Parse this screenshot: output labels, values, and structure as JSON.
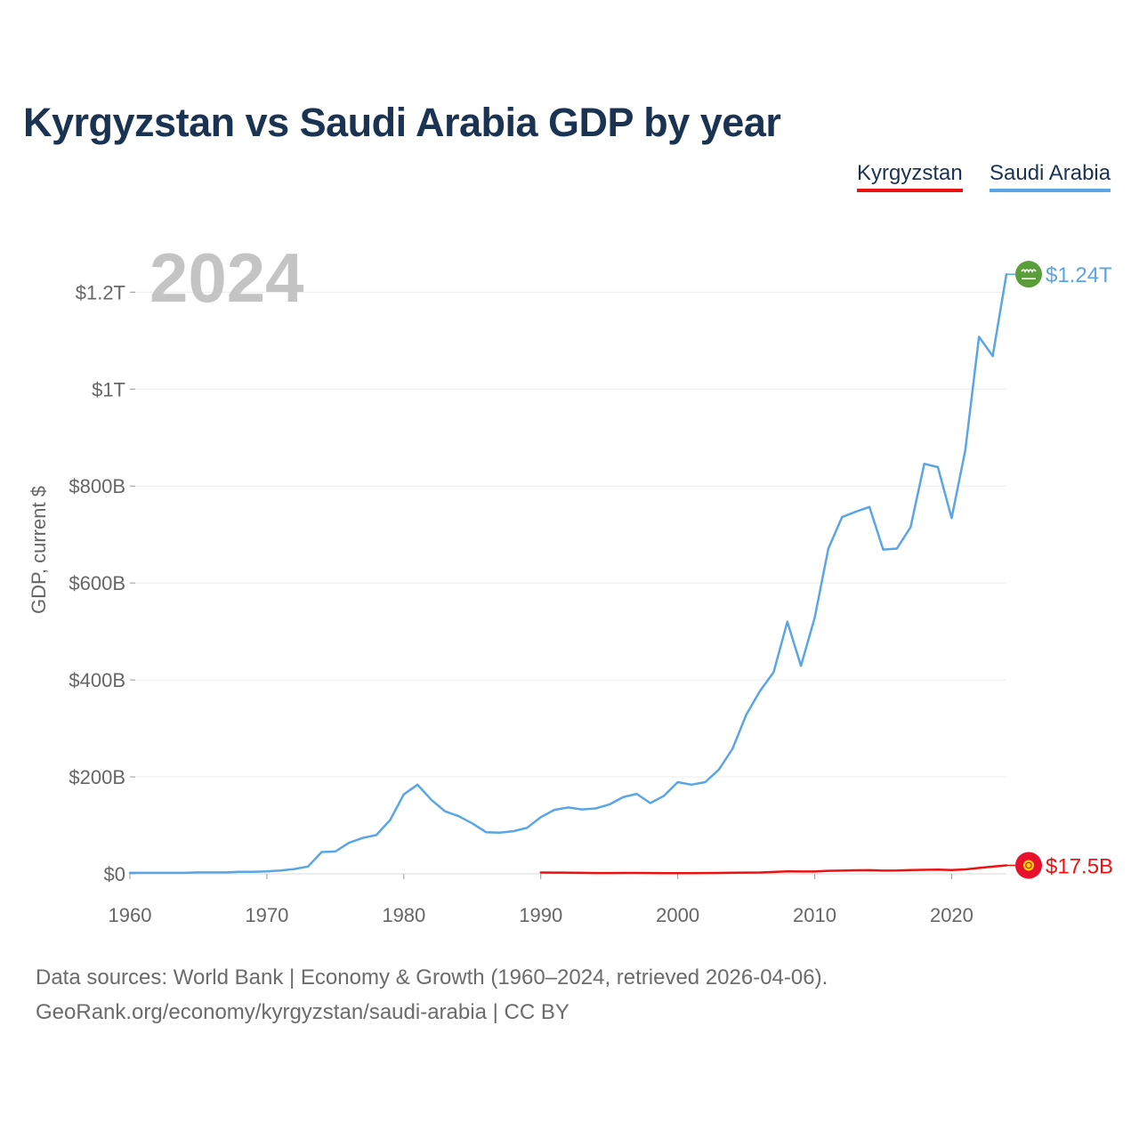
{
  "chart_data": {
    "type": "line",
    "title": "Kyrgyzstan vs Saudi Arabia GDP by year",
    "highlight_year": "2024",
    "ylabel": "GDP, current $",
    "xlabel": "",
    "xlim": [
      1960,
      2024
    ],
    "ylim": [
      0,
      1300
    ],
    "value_unit": "billions of current US$",
    "x_ticks": [
      {
        "value": 1960,
        "label": "1960"
      },
      {
        "value": 1970,
        "label": "1970"
      },
      {
        "value": 1980,
        "label": "1980"
      },
      {
        "value": 1990,
        "label": "1990"
      },
      {
        "value": 2000,
        "label": "2000"
      },
      {
        "value": 2010,
        "label": "2010"
      },
      {
        "value": 2020,
        "label": "2020"
      }
    ],
    "y_ticks": [
      {
        "value": 0,
        "label": "$0"
      },
      {
        "value": 200,
        "label": "$200B"
      },
      {
        "value": 400,
        "label": "$400B"
      },
      {
        "value": 600,
        "label": "$600B"
      },
      {
        "value": 800,
        "label": "$800B"
      },
      {
        "value": 1000,
        "label": "$1T"
      },
      {
        "value": 1200,
        "label": "$1.2T"
      }
    ],
    "grid": true,
    "legend_position": "top-right",
    "series": [
      {
        "key": "kyrgyzstan",
        "name": "Kyrgyzstan",
        "color": "#ee1111",
        "end_label": "$17.5B",
        "flag_icon": "kyrgyzstan-flag-icon",
        "x": [
          1990,
          1991,
          1992,
          1993,
          1994,
          1995,
          1996,
          1997,
          1998,
          1999,
          2000,
          2001,
          2002,
          2003,
          2004,
          2005,
          2006,
          2007,
          2008,
          2009,
          2010,
          2011,
          2012,
          2013,
          2014,
          2015,
          2016,
          2017,
          2018,
          2019,
          2020,
          2021,
          2022,
          2023,
          2024
        ],
        "values": [
          2.7,
          2.6,
          2.3,
          2.0,
          1.7,
          1.7,
          1.8,
          1.8,
          1.6,
          1.2,
          1.4,
          1.5,
          1.6,
          1.9,
          2.2,
          2.5,
          2.8,
          3.8,
          5.1,
          4.7,
          4.8,
          6.2,
          6.6,
          7.3,
          7.5,
          6.7,
          6.8,
          7.7,
          8.3,
          8.9,
          7.8,
          9.2,
          12.1,
          14.8,
          17.5
        ]
      },
      {
        "key": "saudi_arabia",
        "name": "Saudi Arabia",
        "color": "#5aa5e6",
        "end_label": "$1.24T",
        "flag_icon": "saudi-arabia-flag-icon",
        "x": [
          1960,
          1961,
          1962,
          1963,
          1964,
          1965,
          1966,
          1967,
          1968,
          1969,
          1970,
          1971,
          1972,
          1973,
          1974,
          1975,
          1976,
          1977,
          1978,
          1979,
          1980,
          1981,
          1982,
          1983,
          1984,
          1985,
          1986,
          1987,
          1988,
          1989,
          1990,
          1991,
          1992,
          1993,
          1994,
          1995,
          1996,
          1997,
          1998,
          1999,
          2000,
          2001,
          2002,
          2003,
          2004,
          2005,
          2006,
          2007,
          2008,
          2009,
          2010,
          2011,
          2012,
          2013,
          2014,
          2015,
          2016,
          2017,
          2018,
          2019,
          2020,
          2021,
          2022,
          2023,
          2024
        ],
        "values": [
          2,
          2,
          2,
          2,
          2,
          3,
          3,
          3,
          4,
          4,
          5,
          7,
          10,
          15,
          45,
          46,
          64,
          74,
          80,
          111,
          164,
          184,
          153,
          129,
          119,
          104,
          86,
          85,
          88,
          95,
          117,
          132,
          137,
          133,
          135,
          143,
          158,
          165,
          146,
          161,
          189,
          184,
          189,
          215,
          258,
          328,
          377,
          416,
          520,
          429,
          528,
          671,
          736,
          747,
          757,
          669,
          671,
          715,
          846,
          839,
          734,
          874,
          1108,
          1068,
          1237
        ]
      }
    ]
  },
  "footer": {
    "line1": "Data sources: World Bank | Economy & Growth (1960–2024, retrieved 2026-04-06).",
    "line2": "GeoRank.org/economy/kyrgyzstan/saudi-arabia | CC BY"
  }
}
